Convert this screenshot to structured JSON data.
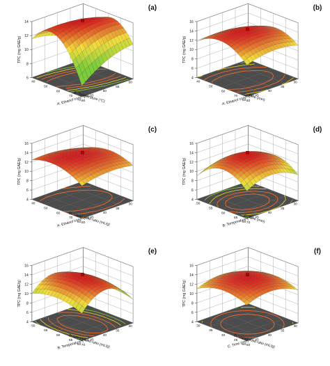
{
  "colors": {
    "low": "#7ccd3a",
    "mid": "#f2dd3c",
    "high": "#d9191c",
    "floor": "#4c4c4c",
    "floor_dark": "#353535",
    "frame": "#555555",
    "text": "#111111",
    "contour_outer": "#7cc234",
    "contour_mid": "#e6c41f",
    "contour_inner": "#ef6a2a",
    "design_point": "#c00000"
  },
  "chart_data": [
    {
      "type": "surface",
      "panel": "(a)",
      "z_label": "TPC (mg GAE/g)",
      "z_ticks": [
        6,
        8,
        10,
        12,
        14
      ],
      "zlim": [
        6,
        14
      ],
      "x_label": "A: Ethanol conc. (%)",
      "x_ticks": [
        40,
        50,
        60,
        70,
        80
      ],
      "xlim": [
        40,
        80
      ],
      "y_label": "B: Temperature (°C)",
      "y_ticks": [
        50,
        55,
        60,
        65,
        70
      ],
      "ylim": [
        50,
        70
      ],
      "peak": {
        "x": 59,
        "y": 60,
        "z": 14.1
      },
      "surface_corners": {
        "x0y0": 8.0,
        "x1y0": 10.5,
        "x0y1": 12.0,
        "x1y1": 8.0
      },
      "design_point": {
        "x": 60,
        "y": 60,
        "z": 14.0
      }
    },
    {
      "type": "surface",
      "panel": "(b)",
      "z_label": "TPC (mg GAE/g)",
      "z_ticks": [
        4,
        6,
        8,
        10,
        12,
        14,
        16
      ],
      "zlim": [
        4,
        16
      ],
      "x_label": "A: Ethanol conc. (%)",
      "x_ticks": [
        40,
        50,
        60,
        70,
        80
      ],
      "xlim": [
        40,
        80
      ],
      "y_label": "C: Time (min)",
      "y_ticks": [
        30,
        35,
        40,
        45,
        50
      ],
      "ylim": [
        30,
        50
      ],
      "peak": {
        "x": 60,
        "y": 42,
        "z": 14.4
      },
      "surface_corners": {
        "x0y0": 10.0,
        "x1y0": 11.0,
        "x0y1": 12.0,
        "x1y1": 10.5
      },
      "design_point": {
        "x": 60,
        "y": 40,
        "z": 14.0
      }
    },
    {
      "type": "surface",
      "panel": "(c)",
      "z_label": "TPC (mg GAE/g)",
      "z_ticks": [
        4,
        6,
        8,
        10,
        12,
        14,
        16
      ],
      "zlim": [
        4,
        16
      ],
      "x_label": "A: Ethanol conc. (%)",
      "x_ticks": [
        40,
        50,
        60,
        70,
        80
      ],
      "xlim": [
        40,
        80
      ],
      "y_label": "D: Liquid-solid ratio (mL/g)",
      "y_ticks": [
        30,
        35,
        40,
        45,
        50
      ],
      "ylim": [
        30,
        50
      ],
      "peak": {
        "x": 58,
        "y": 42,
        "z": 13.8
      },
      "surface_corners": {
        "x0y0": 11.0,
        "x1y0": 11.5,
        "x0y1": 12.5,
        "x1y1": 11.0
      },
      "design_point": {
        "x": 60,
        "y": 40,
        "z": 14.0
      }
    },
    {
      "type": "surface",
      "panel": "(d)",
      "z_label": "TPC (mg GAE/g)",
      "z_ticks": [
        4,
        6,
        8,
        10,
        12,
        14,
        16
      ],
      "zlim": [
        4,
        16
      ],
      "x_label": "B: Temperature (°C)",
      "x_ticks": [
        50,
        55,
        60,
        65,
        70
      ],
      "xlim": [
        50,
        70
      ],
      "y_label": "C: Time (min)",
      "y_ticks": [
        30,
        35,
        40,
        45,
        50
      ],
      "ylim": [
        30,
        50
      ],
      "peak": {
        "x": 61,
        "y": 41,
        "z": 14.0
      },
      "surface_corners": {
        "x0y0": 7.5,
        "x1y0": 9.5,
        "x0y1": 9.0,
        "x1y1": 10.5
      },
      "design_point": {
        "x": 60,
        "y": 40,
        "z": 14.0
      }
    },
    {
      "type": "surface",
      "panel": "(e)",
      "z_label": "TPC (mg GAE/g)",
      "z_ticks": [
        4,
        6,
        8,
        10,
        12,
        14,
        16
      ],
      "zlim": [
        4,
        16
      ],
      "x_label": "B: Temperature (°C)",
      "x_ticks": [
        50,
        55,
        60,
        65,
        70
      ],
      "xlim": [
        50,
        70
      ],
      "y_label": "D: Liquid-solid ratio (mL/g)",
      "y_ticks": [
        30,
        35,
        40,
        45,
        50
      ],
      "ylim": [
        30,
        50
      ],
      "peak": {
        "x": 61,
        "y": 41,
        "z": 14.1
      },
      "surface_corners": {
        "x0y0": 7.0,
        "x1y0": 9.0,
        "x0y1": 10.0,
        "x1y1": 11.0
      },
      "design_point": {
        "x": 60,
        "y": 40,
        "z": 14.0
      }
    },
    {
      "type": "surface",
      "panel": "(f)",
      "z_label": "TPC (mg GAE/g)",
      "z_ticks": [
        4,
        6,
        8,
        10,
        12,
        14,
        16
      ],
      "zlim": [
        4,
        16
      ],
      "x_label": "C: Time (min)",
      "x_ticks": [
        30,
        35,
        40,
        45,
        50
      ],
      "xlim": [
        30,
        50
      ],
      "y_label": "D: Liquid-solid ratio (mL/g)",
      "y_ticks": [
        30,
        35,
        40,
        45,
        50
      ],
      "ylim": [
        30,
        50
      ],
      "peak": {
        "x": 41,
        "y": 41,
        "z": 14.0
      },
      "surface_corners": {
        "x0y0": 10.5,
        "x1y0": 11.0,
        "x0y1": 11.0,
        "x1y1": 11.5
      },
      "design_point": {
        "x": 40,
        "y": 40,
        "z": 14.0
      }
    }
  ]
}
